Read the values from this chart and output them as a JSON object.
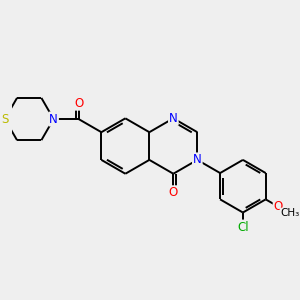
{
  "bg_color": "#efefef",
  "bond_color": "#000000",
  "bond_lw": 1.4,
  "atom_colors": {
    "N": "#0000ff",
    "O": "#ff0000",
    "S": "#bbbb00",
    "Cl": "#00aa00",
    "C": "#000000"
  },
  "font_size": 8.5,
  "fig_width": 3.0,
  "fig_height": 3.0,
  "dpi": 100,
  "xlim": [
    0,
    10
  ],
  "ylim": [
    0,
    10
  ]
}
